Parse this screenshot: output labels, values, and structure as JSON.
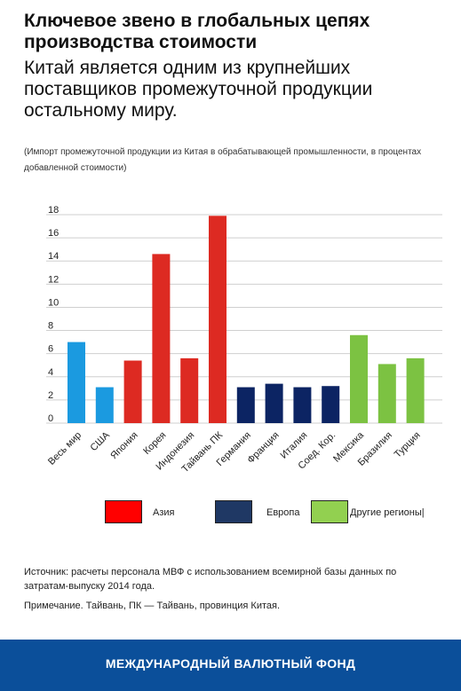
{
  "header": {
    "title": "Ключевое звено в глобальных цепях производства стоимости",
    "subtitle": "Китай является одним из крупнейших поставщиков промежуточной продукции остальному миру.",
    "note": "(Импорт промежуточной продукции из Китая в обрабатывающей промышленности, в процентах добавленной стоимости)"
  },
  "chart_data": {
    "type": "bar",
    "categories": [
      "Весь мир",
      "США",
      "Япония",
      "Корея",
      "Индонезия",
      "Тайвань ПК",
      "Германия",
      "Франция",
      "Италия",
      "Соед. Кор.",
      "Мексика",
      "Бразилия",
      "Турция"
    ],
    "values": [
      7.0,
      3.1,
      5.4,
      14.6,
      5.6,
      17.9,
      3.1,
      3.4,
      3.1,
      3.2,
      7.6,
      5.1,
      5.6
    ],
    "groups": [
      "world",
      "world",
      "asia",
      "asia",
      "asia",
      "asia",
      "europe",
      "europe",
      "europe",
      "europe",
      "other",
      "other",
      "other"
    ],
    "colors": {
      "world": "#1b9ae0",
      "asia": "#dd2a22",
      "europe": "#0c2463",
      "other": "#7cc242"
    },
    "ylim": [
      0,
      18
    ],
    "yticks": [
      "0",
      "2",
      "4",
      "6",
      "8",
      "10",
      "12",
      "14",
      "16",
      "18"
    ],
    "grid": true,
    "legend": [
      {
        "label": "Азия",
        "color": "#ff0000"
      },
      {
        "label": "Европа",
        "color": "#1f3864"
      },
      {
        "label": "Другие регионы|",
        "color": "#92d050"
      }
    ]
  },
  "source": "Источник: расчеты персонала МВФ с использованием всемирной базы данных по затратам-выпуску 2014 года.",
  "footnote": "Примечание. Тайвань, ПК — Тайвань, провинция Китая.",
  "footer": {
    "org": "МЕЖДУНАРОДНЫЙ ВАЛЮТНЫЙ ФОНД",
    "color": "#0b4f9a"
  }
}
